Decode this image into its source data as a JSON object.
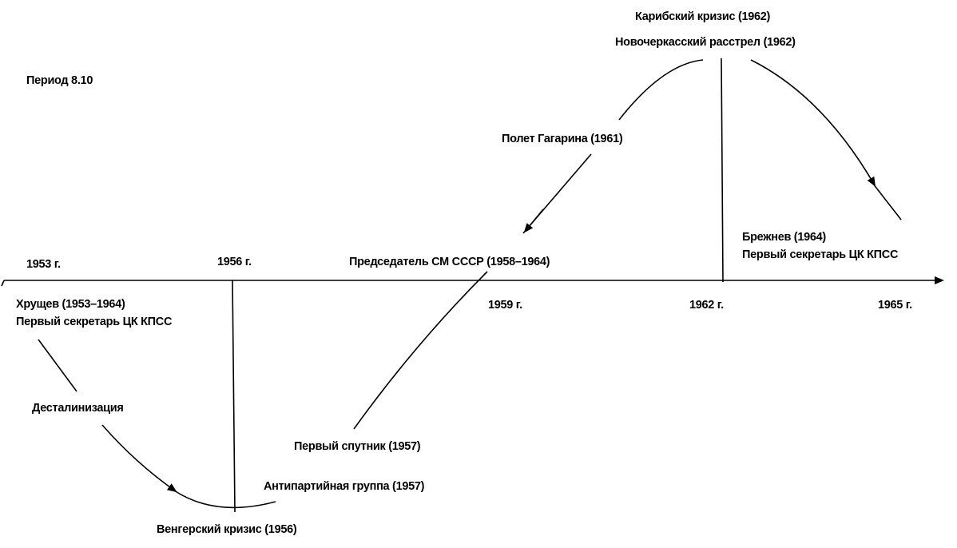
{
  "title": "Период 8.10",
  "years": [
    "1953 г.",
    "1956 г.",
    "1959 г.",
    "1962 г.",
    "1965 г."
  ],
  "labels": {
    "khrushchev": [
      "Хрущев (1953–1964)",
      "Первый секретарь ЦК КПСС"
    ],
    "destalinization": "Десталинизация",
    "hungary": "Венгерский кризис (1956)",
    "sputnik": "Первый спутник (1957)",
    "antiparty": "Антипартийная группа (1957)",
    "chairman": "Председатель СМ СССР (1958–1964)",
    "gagarin": "Полет Гагарина (1961)",
    "caribbean": "Карибский кризис (1962)",
    "novocherkassk": "Новочеркасский расстрел (1962)",
    "brezhnev": [
      "Брежнев (1964)",
      "Первый секретарь ЦК КПСС"
    ]
  }
}
